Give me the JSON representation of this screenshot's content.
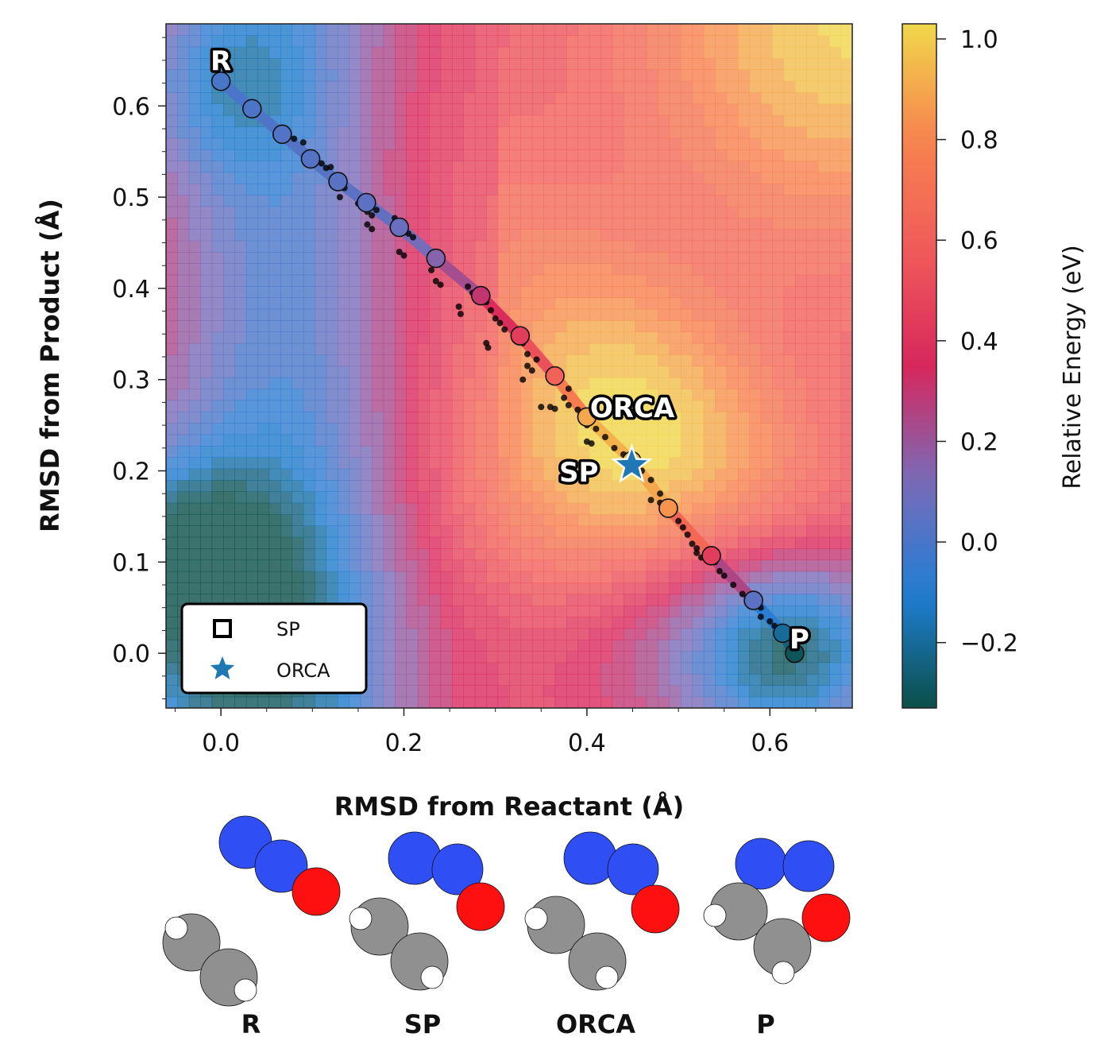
{
  "chart_data": {
    "type": "heatmap",
    "xlabel": "RMSD from Reactant (Å)",
    "ylabel": "RMSD from Product (Å)",
    "xlim": [
      -0.06,
      0.69
    ],
    "ylim": [
      -0.06,
      0.69
    ],
    "xticks": [
      "0.0",
      "0.2",
      "0.4",
      "0.6"
    ],
    "yticks": [
      "0.0",
      "0.1",
      "0.2",
      "0.3",
      "0.4",
      "0.5",
      "0.6"
    ],
    "colorbar": {
      "label": "Relative Energy (eV)",
      "range": [
        -0.33,
        1.03
      ],
      "ticks": [
        "−0.2",
        "0.0",
        "0.2",
        "0.4",
        "0.6",
        "0.8",
        "1.0"
      ],
      "colors": [
        "#0b4f48",
        "#1f7fd6",
        "#7a6bb8",
        "#d7275c",
        "#f05a5a",
        "#f7834e",
        "#f0d84a"
      ]
    },
    "surface": {
      "grid": "contour-filled",
      "minima": [
        {
          "x": 0.0,
          "y": 0.63,
          "energy": -0.05
        },
        {
          "x": 0.63,
          "y": 0.0,
          "energy": -0.25
        },
        {
          "x": -0.05,
          "y": 0.1,
          "energy": -0.25
        }
      ],
      "saddle": {
        "x": 0.42,
        "y": 0.21,
        "energy": 0.8
      },
      "maximum": {
        "x": 0.69,
        "y": 0.69,
        "energy": 1.0
      },
      "low_left_basin": {
        "x": 0.0,
        "y": 0.0,
        "energy": -0.15
      }
    },
    "path_points": [
      {
        "x": 0.0,
        "y": 0.627,
        "energy": 0.0
      },
      {
        "x": 0.034,
        "y": 0.597,
        "energy": 0.01
      },
      {
        "x": 0.067,
        "y": 0.569,
        "energy": 0.02
      },
      {
        "x": 0.098,
        "y": 0.542,
        "energy": 0.03
      },
      {
        "x": 0.128,
        "y": 0.517,
        "energy": 0.04
      },
      {
        "x": 0.159,
        "y": 0.494,
        "energy": 0.05
      },
      {
        "x": 0.195,
        "y": 0.467,
        "energy": 0.08
      },
      {
        "x": 0.235,
        "y": 0.433,
        "energy": 0.15
      },
      {
        "x": 0.284,
        "y": 0.392,
        "energy": 0.3
      },
      {
        "x": 0.327,
        "y": 0.348,
        "energy": 0.45
      },
      {
        "x": 0.365,
        "y": 0.304,
        "energy": 0.62
      },
      {
        "x": 0.4,
        "y": 0.259,
        "energy": 0.9
      },
      {
        "x": 0.449,
        "y": 0.211,
        "energy": 0.95
      },
      {
        "x": 0.489,
        "y": 0.159,
        "energy": 0.85
      },
      {
        "x": 0.536,
        "y": 0.107,
        "energy": 0.45
      },
      {
        "x": 0.582,
        "y": 0.058,
        "energy": 0.05
      },
      {
        "x": 0.614,
        "y": 0.022,
        "energy": -0.2
      },
      {
        "x": 0.627,
        "y": 0.0,
        "energy": -0.3
      }
    ],
    "samples": [
      [
        0.07,
        0.566
      ],
      [
        0.08,
        0.564
      ],
      [
        0.09,
        0.56
      ],
      [
        0.1,
        0.545
      ],
      [
        0.11,
        0.537
      ],
      [
        0.115,
        0.532
      ],
      [
        0.12,
        0.533
      ],
      [
        0.13,
        0.523
      ],
      [
        0.135,
        0.51
      ],
      [
        0.13,
        0.5
      ],
      [
        0.15,
        0.493
      ],
      [
        0.16,
        0.484
      ],
      [
        0.165,
        0.48
      ],
      [
        0.17,
        0.486
      ],
      [
        0.16,
        0.47
      ],
      [
        0.165,
        0.465
      ],
      [
        0.19,
        0.477
      ],
      [
        0.2,
        0.47
      ],
      [
        0.205,
        0.46
      ],
      [
        0.21,
        0.456
      ],
      [
        0.195,
        0.44
      ],
      [
        0.2,
        0.436
      ],
      [
        0.23,
        0.436
      ],
      [
        0.23,
        0.42
      ],
      [
        0.235,
        0.408
      ],
      [
        0.24,
        0.404
      ],
      [
        0.27,
        0.402
      ],
      [
        0.275,
        0.395
      ],
      [
        0.26,
        0.38
      ],
      [
        0.262,
        0.372
      ],
      [
        0.29,
        0.385
      ],
      [
        0.295,
        0.376
      ],
      [
        0.3,
        0.367
      ],
      [
        0.305,
        0.362
      ],
      [
        0.31,
        0.355
      ],
      [
        0.29,
        0.34
      ],
      [
        0.292,
        0.335
      ],
      [
        0.33,
        0.34
      ],
      [
        0.335,
        0.328
      ],
      [
        0.345,
        0.322
      ],
      [
        0.335,
        0.315
      ],
      [
        0.34,
        0.31
      ],
      [
        0.33,
        0.3
      ],
      [
        0.38,
        0.29
      ],
      [
        0.375,
        0.28
      ],
      [
        0.38,
        0.272
      ],
      [
        0.39,
        0.267
      ],
      [
        0.365,
        0.268
      ],
      [
        0.36,
        0.27
      ],
      [
        0.35,
        0.27
      ],
      [
        0.4,
        0.262
      ],
      [
        0.4,
        0.25
      ],
      [
        0.41,
        0.246
      ],
      [
        0.42,
        0.237
      ],
      [
        0.4,
        0.232
      ],
      [
        0.405,
        0.23
      ],
      [
        0.43,
        0.225
      ],
      [
        0.44,
        0.218
      ],
      [
        0.45,
        0.215
      ],
      [
        0.46,
        0.2
      ],
      [
        0.47,
        0.19
      ],
      [
        0.48,
        0.175
      ],
      [
        0.47,
        0.168
      ],
      [
        0.48,
        0.165
      ],
      [
        0.495,
        0.157
      ],
      [
        0.5,
        0.145
      ],
      [
        0.505,
        0.138
      ],
      [
        0.51,
        0.13
      ],
      [
        0.515,
        0.12
      ],
      [
        0.52,
        0.115
      ],
      [
        0.52,
        0.11
      ],
      [
        0.525,
        0.105
      ],
      [
        0.54,
        0.1
      ],
      [
        0.545,
        0.09
      ],
      [
        0.55,
        0.085
      ],
      [
        0.56,
        0.075
      ],
      [
        0.57,
        0.065
      ],
      [
        0.575,
        0.06
      ],
      [
        0.59,
        0.05
      ],
      [
        0.59,
        0.04
      ],
      [
        0.6,
        0.035
      ],
      [
        0.605,
        0.03
      ],
      [
        0.61,
        0.028
      ]
    ],
    "annotations": [
      {
        "text": "R",
        "x": 0.0,
        "y": 0.627
      },
      {
        "text": "P",
        "x": 0.627,
        "y": 0.0
      },
      {
        "text": "ORCA",
        "x": 0.4,
        "y": 0.259
      },
      {
        "text": "SP",
        "x": 0.449,
        "y": 0.211
      }
    ],
    "sp_marker": {
      "x": 0.449,
      "y": 0.206
    },
    "legend": {
      "placement": "lower-left",
      "entries": [
        {
          "label": "SP",
          "marker": "square-open"
        },
        {
          "label": "ORCA",
          "marker": "star",
          "color": "#1f77b4"
        }
      ]
    },
    "molecules": {
      "labels": [
        "R",
        "SP",
        "ORCA",
        "P"
      ],
      "atom_colors": {
        "N": "#2f4ff5",
        "O": "#ff1010",
        "C": "#909090",
        "H": "#ffffff"
      }
    }
  }
}
